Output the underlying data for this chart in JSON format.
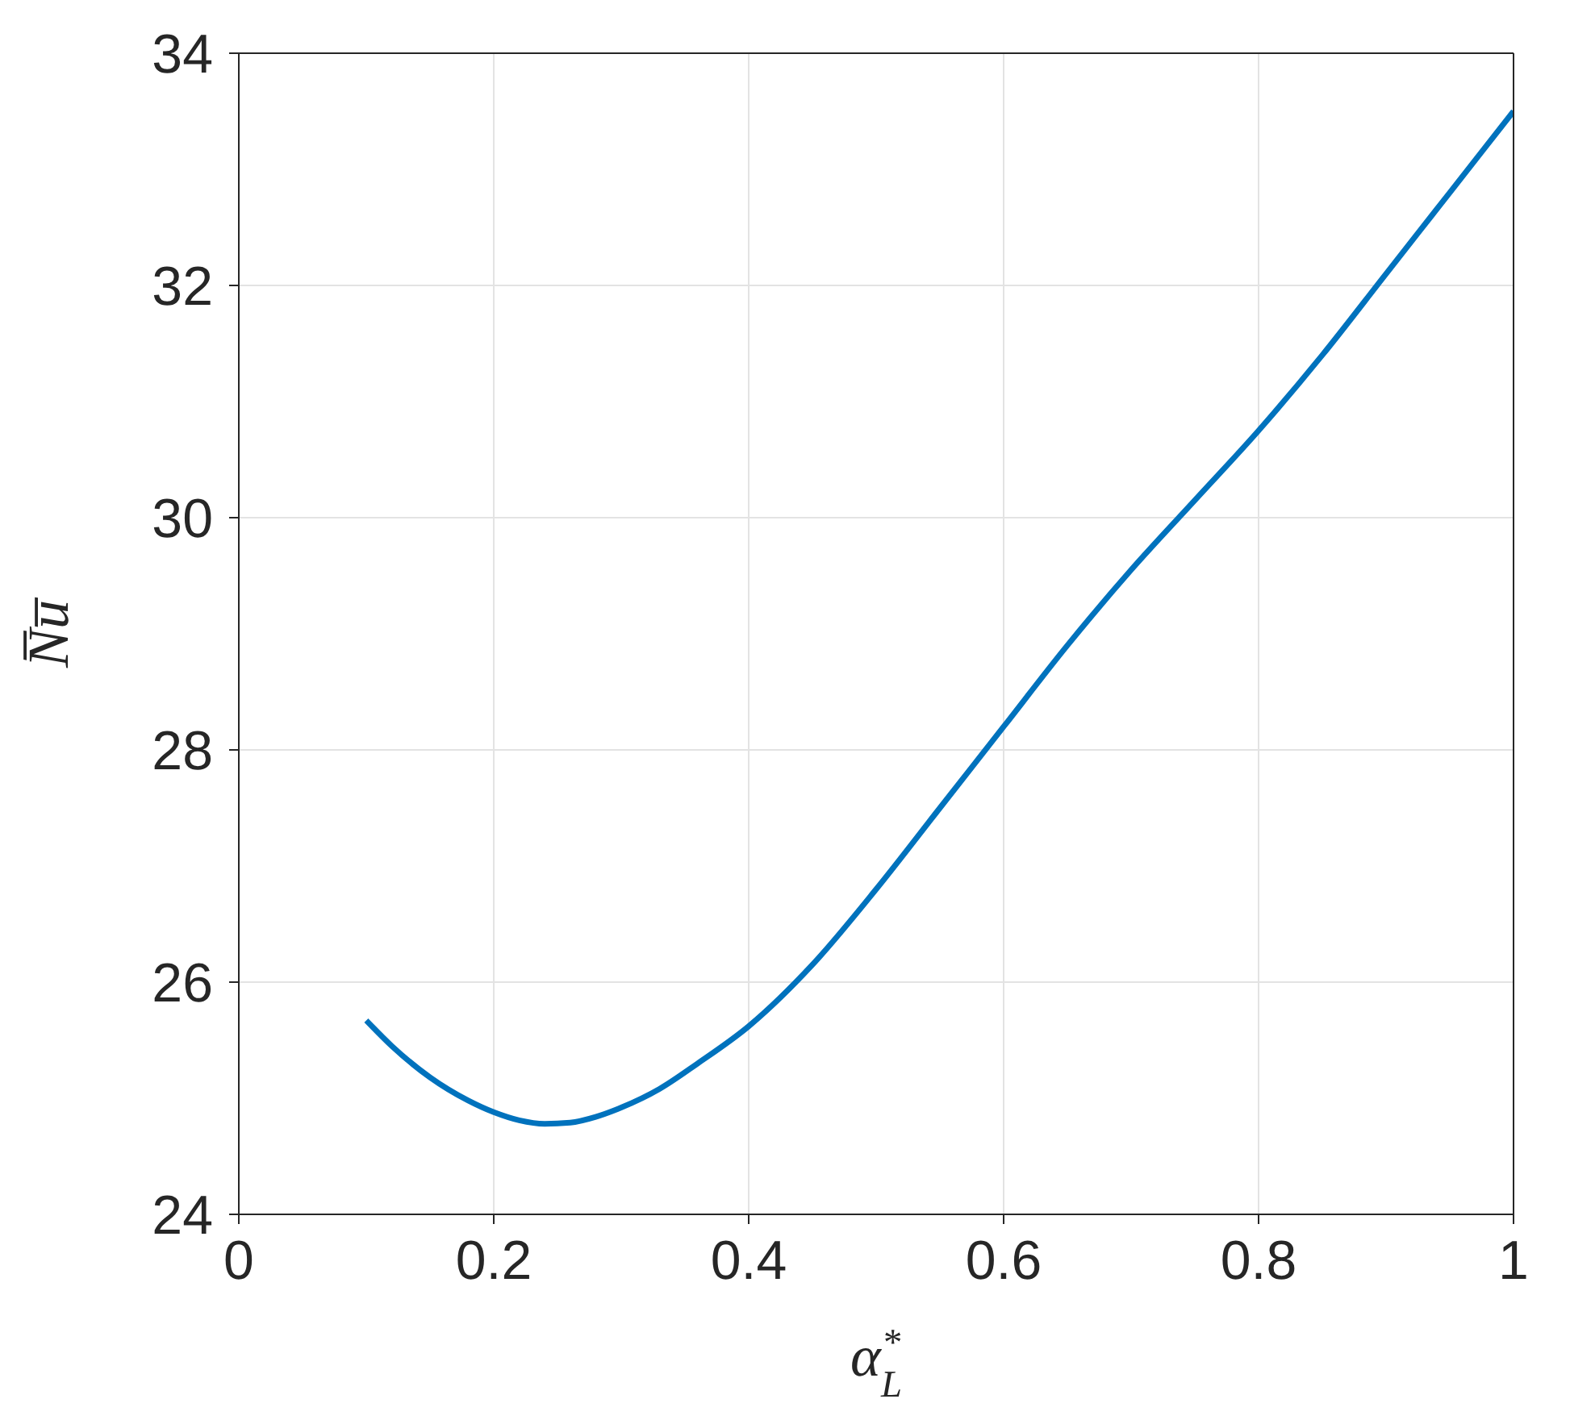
{
  "chart_data": {
    "type": "line",
    "xlabel": "α$_{L}$$^{*}$",
    "ylabel": "N̅u̅",
    "x": [
      0.1,
      0.12,
      0.15,
      0.18,
      0.2,
      0.22,
      0.24,
      0.26,
      0.28,
      0.3,
      0.33,
      0.36,
      0.4,
      0.45,
      0.5,
      0.55,
      0.6,
      0.65,
      0.7,
      0.75,
      0.8,
      0.85,
      0.9,
      0.95,
      1.0
    ],
    "series": [
      {
        "color": "#0072bd",
        "values": [
          25.67,
          25.45,
          25.18,
          24.98,
          24.88,
          24.81,
          24.78,
          24.79,
          24.84,
          24.92,
          25.08,
          25.3,
          25.62,
          26.15,
          26.8,
          27.5,
          28.2,
          28.9,
          29.55,
          30.15,
          30.75,
          31.4,
          32.1,
          32.8,
          33.5
        ]
      }
    ],
    "xlim": [
      0,
      1
    ],
    "ylim": [
      24,
      34
    ],
    "xticks": [
      0,
      0.2,
      0.4,
      0.6,
      0.8,
      1
    ],
    "yticks": [
      24,
      26,
      28,
      30,
      32,
      34
    ],
    "grid": true,
    "marker": "none",
    "line_style": "solid"
  }
}
